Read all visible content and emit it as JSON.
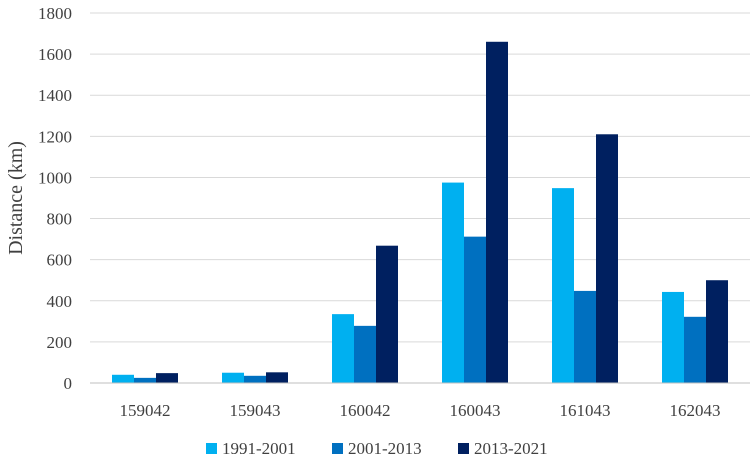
{
  "chart_data": {
    "type": "bar",
    "categories": [
      "159042",
      "159043",
      "160042",
      "160043",
      "161043",
      "162043"
    ],
    "series": [
      {
        "name": "1991-2001",
        "values": [
          40,
          50,
          335,
          975,
          948,
          443
        ]
      },
      {
        "name": "2001-2013",
        "values": [
          25,
          35,
          278,
          712,
          448,
          322
        ]
      },
      {
        "name": "2013-2021",
        "values": [
          48,
          52,
          668,
          1660,
          1210,
          500
        ]
      }
    ],
    "title": "",
    "xlabel": "",
    "ylabel": "Distance (km)",
    "ylim": [
      0,
      1800
    ],
    "yticks": [
      0,
      200,
      400,
      600,
      800,
      1000,
      1200,
      1400,
      1600,
      1800
    ],
    "grid": true,
    "legend": "bottom",
    "colors": [
      "#00b0f0",
      "#0070c0",
      "#002060"
    ]
  }
}
